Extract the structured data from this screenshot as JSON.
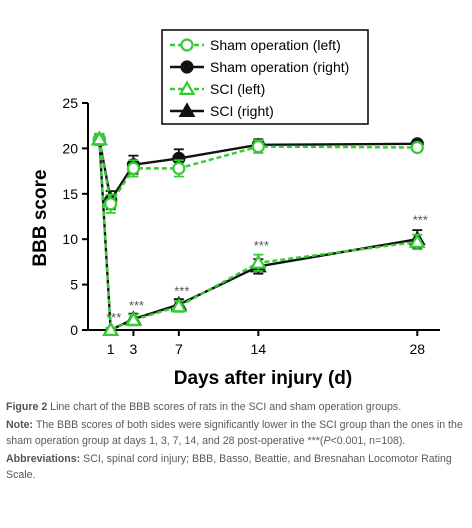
{
  "chart_data": {
    "type": "line",
    "xlabel": "Days after injury (d)",
    "ylabel": "BBB score",
    "xlim": [
      -1,
      30
    ],
    "ylim": [
      0,
      25
    ],
    "xticks": [
      1,
      3,
      7,
      14,
      28
    ],
    "yticks": [
      0,
      5,
      10,
      15,
      20,
      25
    ],
    "grid": false,
    "legend_position": "top-center",
    "series": [
      {
        "name": "Sham operation (left)",
        "color": "#33cc33",
        "marker": "circle-open",
        "dash": true,
        "x": [
          0,
          1,
          3,
          7,
          14,
          28
        ],
        "y": [
          21,
          13.9,
          17.8,
          17.8,
          20.2,
          20.1
        ],
        "err": [
          0.6,
          1.0,
          0.9,
          0.9,
          0.7,
          0.4
        ]
      },
      {
        "name": "Sham operation (right)",
        "color": "#111111",
        "marker": "circle-filled",
        "dash": false,
        "x": [
          0,
          1,
          3,
          7,
          14,
          28
        ],
        "y": [
          21,
          14.3,
          18.2,
          18.9,
          20.4,
          20.5
        ],
        "err": [
          0.6,
          1.0,
          1.0,
          1.0,
          0.6,
          0.4
        ]
      },
      {
        "name": "SCI (left)",
        "color": "#33cc33",
        "marker": "triangle-open",
        "dash": true,
        "x": [
          0,
          1,
          3,
          7,
          14,
          28
        ],
        "y": [
          21,
          0,
          1.1,
          2.6,
          7.4,
          9.7
        ],
        "err": [
          0.6,
          0.2,
          0.6,
          0.6,
          0.9,
          0.8
        ]
      },
      {
        "name": "SCI (right)",
        "color": "#111111",
        "marker": "triangle-filled",
        "dash": false,
        "x": [
          0,
          1,
          3,
          7,
          14,
          28
        ],
        "y": [
          21,
          0,
          1.2,
          2.8,
          7.0,
          10.0
        ],
        "err": [
          0.6,
          0.2,
          0.6,
          0.6,
          0.8,
          1.0
        ]
      }
    ],
    "annotations": [
      {
        "x": 1,
        "y": 0.9,
        "text": "***"
      },
      {
        "x": 3,
        "y": 2.2,
        "text": "***"
      },
      {
        "x": 7,
        "y": 3.8,
        "text": "***"
      },
      {
        "x": 14,
        "y": 8.8,
        "text": "***"
      },
      {
        "x": 28,
        "y": 11.6,
        "text": "***"
      }
    ]
  },
  "caption": {
    "figure_label": "Figure 2",
    "figure_text": "Line chart of the BBB scores of rats in the SCI and sham operation groups.",
    "note_label": "Note:",
    "note_text": "The BBB scores of both sides were significantly lower in the SCI group than the ones in the sham operation group at days 1, 3, 7, 14, and 28 post-operative",
    "note_stats_pre": "***(",
    "note_stats_p": "P",
    "note_stats_post": "<0.001, n=108).",
    "abbr_label": "Abbreviations:",
    "abbr_text": "SCI, spinal cord injury; BBB, Basso, Beattie, and Bresnahan Locomotor Rating Scale."
  }
}
